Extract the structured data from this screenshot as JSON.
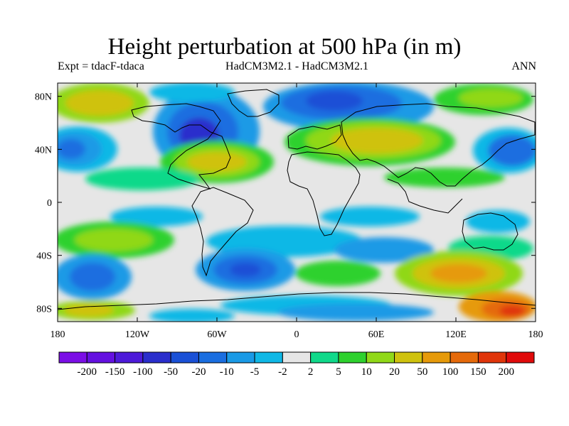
{
  "title": "Height perturbation at 500 hPa (in m)",
  "subtitle_left": "Expt = tdacF-tdaca",
  "subtitle_center": "HadCM3M2.1 - HadCM3M2.1",
  "subtitle_right": "ANN",
  "map": {
    "lon_ticks": [
      "180",
      "120W",
      "60W",
      "0",
      "60E",
      "120E",
      "180"
    ],
    "lat_ticks": [
      "80N",
      "40N",
      "0",
      "40S",
      "80S"
    ],
    "lon_range": [
      -180,
      180
    ],
    "lat_range": [
      -90,
      90
    ],
    "projection": "cylindrical equidistant",
    "variable": "500 hPa geopotential height perturbation (m)",
    "field_features": [
      {
        "region": "North Pacific",
        "sign": "negative",
        "level": -20
      },
      {
        "region": "Eastern North America / Hudson Bay",
        "sign": "negative",
        "level": -50
      },
      {
        "region": "North Atlantic",
        "sign": "positive",
        "level": 50
      },
      {
        "region": "Northern Eurasia",
        "sign": "negative",
        "level": -50
      },
      {
        "region": "Mid-latitude Eurasia",
        "sign": "positive",
        "level": 20
      },
      {
        "region": "Southern Ocean Indian sector",
        "sign": "positive",
        "level": 50
      },
      {
        "region": "South Atlantic",
        "sign": "negative",
        "level": -20
      },
      {
        "region": "South Pacific",
        "sign": "negative",
        "level": -10
      }
    ]
  },
  "colorbar": {
    "labels": [
      "-200",
      "-150",
      "-100",
      "-50",
      "-20",
      "-10",
      "-5",
      "-2",
      "2",
      "5",
      "10",
      "20",
      "50",
      "100",
      "150",
      "200"
    ],
    "colors": [
      "#7b0ee6",
      "#6410e0",
      "#4d1ad9",
      "#2a2ecc",
      "#1a50d6",
      "#1a6ee0",
      "#1a9ae6",
      "#10b8e6",
      "#e6e6e6",
      "#10d98a",
      "#2ed12e",
      "#90d818",
      "#cfc20e",
      "#e69a0a",
      "#e56a0a",
      "#e0350a",
      "#e00a0a"
    ]
  }
}
